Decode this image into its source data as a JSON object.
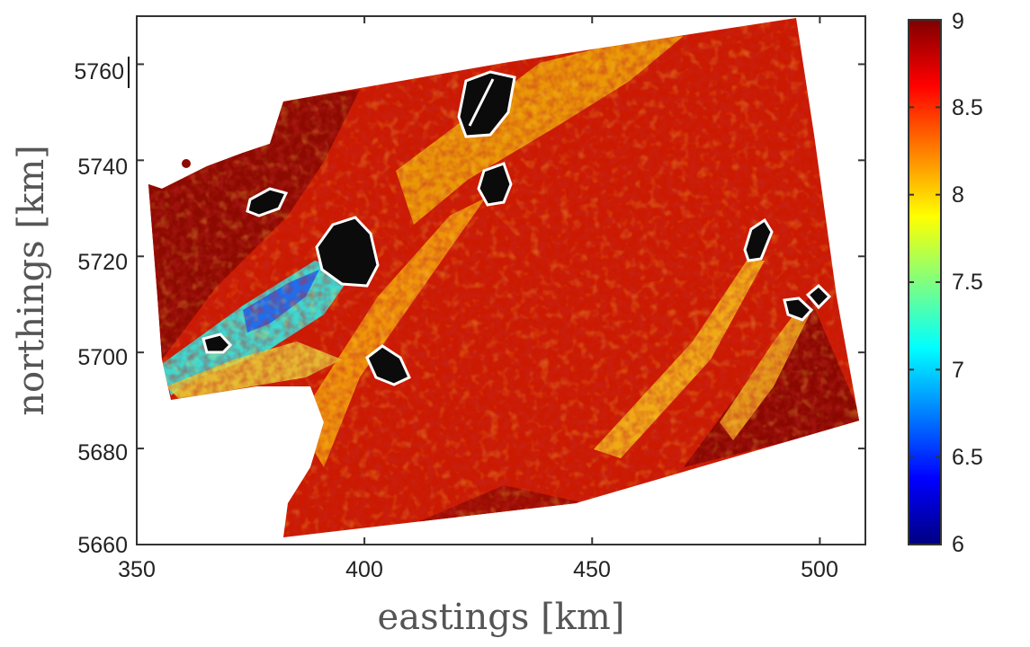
{
  "chart_data": {
    "type": "heatmap",
    "title": "",
    "xlabel": "eastings [km]",
    "ylabel": "northings [km]",
    "xlim": [
      350,
      510
    ],
    "ylim": [
      5660,
      5770
    ],
    "x_ticks": [
      "350",
      "400",
      "450",
      "500"
    ],
    "y_ticks": [
      "5660",
      "5680",
      "5700",
      "5720",
      "5740",
      "5760"
    ],
    "colorbar": {
      "colormap": "jet",
      "range": [
        6,
        9
      ],
      "ticks": [
        "6",
        "6.5",
        "7",
        "7.5",
        "8",
        "8.5",
        "9"
      ]
    },
    "grid": false,
    "field": {
      "dominant_value_range": [
        8.3,
        9
      ],
      "low_value_band": {
        "min_value": 6.8,
        "location": "south-west, near 385-395 km eastings, 5705-5720 km northings"
      },
      "masked_regions_color": "#000000"
    }
  },
  "colors": {
    "jet_stops": [
      "#000080",
      "#0000ff",
      "#00ffff",
      "#ffff00",
      "#ff0000",
      "#800000"
    ],
    "frame": "#333333",
    "mask": "#0b0b0b"
  }
}
